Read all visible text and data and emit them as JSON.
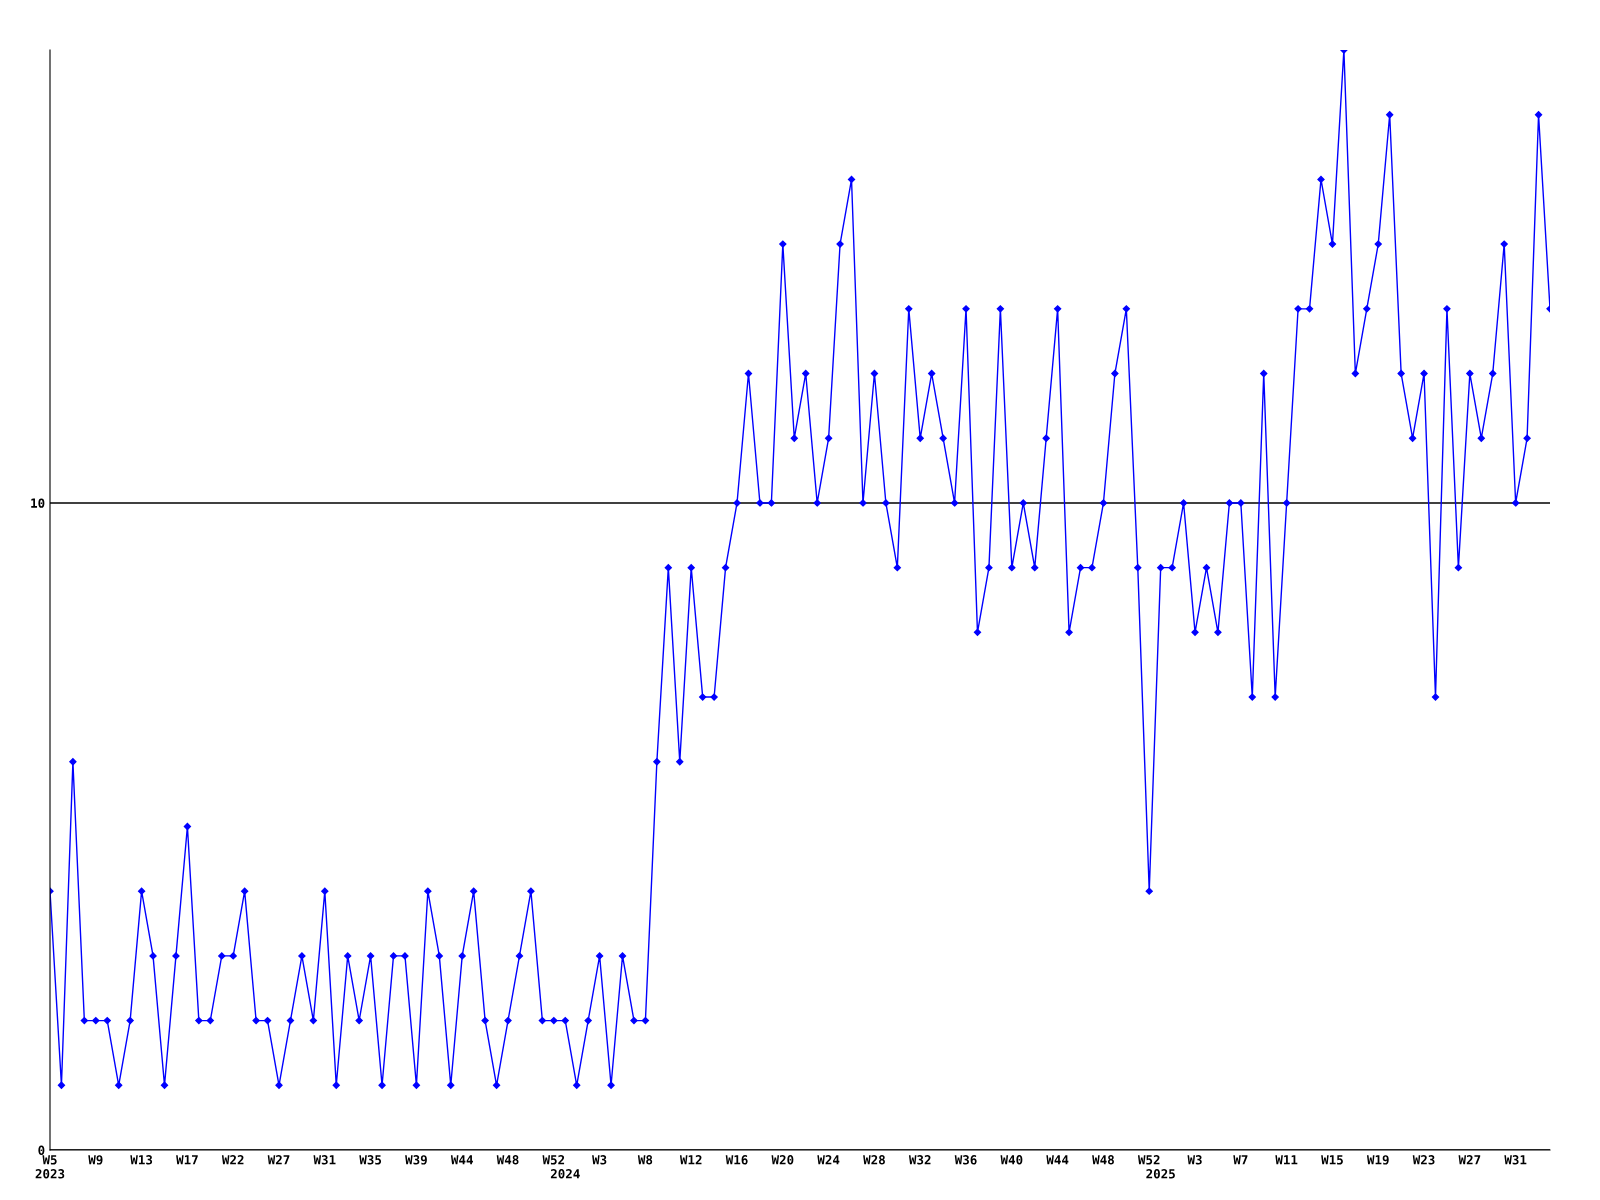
{
  "chart_data": {
    "type": "line",
    "categories": [
      "W5\n2023",
      null,
      null,
      null,
      "W9",
      null,
      null,
      null,
      "W13",
      null,
      null,
      null,
      "W17",
      null,
      null,
      null,
      "W22",
      null,
      null,
      null,
      "W27",
      null,
      null,
      null,
      "W31",
      null,
      null,
      null,
      "W35",
      null,
      null,
      null,
      "W39",
      null,
      null,
      null,
      "W44",
      null,
      null,
      null,
      "W48",
      null,
      null,
      null,
      "W52",
      "\n2024",
      null,
      null,
      "W3",
      null,
      null,
      null,
      "W8",
      null,
      null,
      null,
      "W12",
      null,
      null,
      null,
      "W16",
      null,
      null,
      null,
      "W20",
      null,
      null,
      null,
      "W24",
      null,
      null,
      null,
      "W28",
      null,
      null,
      null,
      "W32",
      null,
      null,
      null,
      "W36",
      null,
      null,
      null,
      "W40",
      null,
      null,
      null,
      "W44",
      null,
      null,
      null,
      "W48",
      null,
      null,
      null,
      "W52",
      "\n2025",
      null,
      null,
      "W3",
      null,
      null,
      null,
      "W7",
      null,
      null,
      null,
      "W11",
      null,
      null,
      null,
      "W15",
      null,
      null,
      null,
      "W19",
      null,
      null,
      null,
      "W23",
      null,
      null,
      null,
      "W27",
      null,
      null,
      null,
      "W31",
      null,
      null,
      null
    ],
    "series": [
      {
        "color": "#0000ff",
        "values": [
          4,
          1,
          6,
          2,
          2,
          2,
          1,
          2,
          4,
          3,
          1,
          3,
          5,
          2,
          2,
          3,
          3,
          4,
          2,
          2,
          1,
          2,
          3,
          2,
          4,
          1,
          3,
          2,
          3,
          1,
          3,
          3,
          1,
          4,
          3,
          1,
          3,
          4,
          2,
          1,
          2,
          3,
          4,
          2,
          2,
          2,
          1,
          2,
          3,
          1,
          3,
          2,
          2,
          6,
          9,
          6,
          9,
          7,
          7,
          9,
          10,
          12,
          10,
          10,
          14,
          11,
          12,
          10,
          11,
          14,
          15,
          10,
          12,
          10,
          9,
          13,
          11,
          12,
          11,
          10,
          13,
          8,
          9,
          13,
          9,
          10,
          9,
          11,
          13,
          8,
          9,
          9,
          10,
          12,
          13,
          9,
          4,
          9,
          9,
          10,
          8,
          9,
          8,
          10,
          10,
          7,
          12,
          7,
          10,
          13,
          13,
          15,
          14,
          17,
          12,
          13,
          14,
          16,
          12,
          11,
          12,
          7,
          13,
          9,
          12,
          11,
          12,
          14,
          10,
          11,
          16,
          13
        ]
      }
    ],
    "ylim": [
      0,
      17
    ],
    "yticks": [
      0,
      10
    ],
    "grid": "y",
    "marker": "diamond",
    "line_style": "solid",
    "legend": false
  }
}
